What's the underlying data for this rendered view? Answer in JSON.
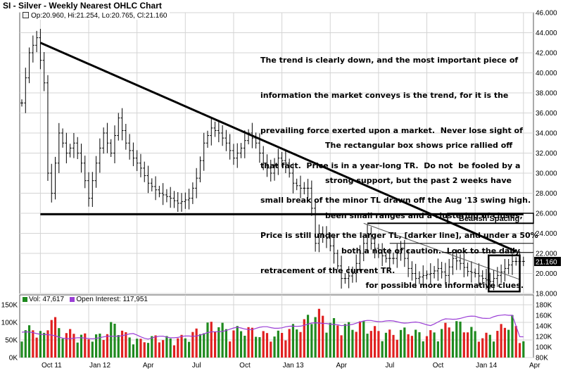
{
  "chart_data": [
    {
      "type": "ohlc",
      "title": "SI - Silver - Weekly Nearest OHLC Chart",
      "legend": {
        "open": "Op:20.960,",
        "high": "Hi:21.254,",
        "low": "Lo:20.765,",
        "close": "Cl:21.160"
      },
      "last_price_label": "21.160",
      "ylim": [
        18,
        46
      ],
      "y_ticks": [
        "18.000",
        "20.000",
        "22.000",
        "24.000",
        "26.000",
        "28.000",
        "30.000",
        "32.000",
        "34.000",
        "36.000",
        "38.000",
        "40.000",
        "42.000",
        "44.000",
        "46.000"
      ],
      "x_ticks": [
        "Oct 11",
        "Jan 12",
        "Apr",
        "Jul",
        "Oct",
        "Jan 13",
        "Apr",
        "Jul",
        "Oct",
        "Jan 14",
        "Apr"
      ],
      "grid": true,
      "anchors": [
        {
          "week": 0,
          "price": 37
        },
        {
          "week": 2,
          "price": 42
        },
        {
          "week": 4,
          "price": 43.5
        },
        {
          "week": 6,
          "price": 39
        },
        {
          "week": 7,
          "price": 30
        },
        {
          "week": 8,
          "price": 28
        },
        {
          "week": 10,
          "price": 34
        },
        {
          "week": 12,
          "price": 32
        },
        {
          "week": 14,
          "price": 33
        },
        {
          "week": 16,
          "price": 31
        },
        {
          "week": 18,
          "price": 27.5
        },
        {
          "week": 20,
          "price": 31
        },
        {
          "week": 22,
          "price": 34
        },
        {
          "week": 24,
          "price": 32
        },
        {
          "week": 26,
          "price": 35.5
        },
        {
          "week": 28,
          "price": 33
        },
        {
          "week": 30,
          "price": 31.5
        },
        {
          "week": 32,
          "price": 30.5
        },
        {
          "week": 34,
          "price": 29
        },
        {
          "week": 37,
          "price": 28
        },
        {
          "week": 40,
          "price": 27.5
        },
        {
          "week": 42,
          "price": 27
        },
        {
          "week": 45,
          "price": 27.5
        },
        {
          "week": 47,
          "price": 29.5
        },
        {
          "week": 49,
          "price": 33
        },
        {
          "week": 51,
          "price": 34.5
        },
        {
          "week": 53,
          "price": 34
        },
        {
          "week": 55,
          "price": 33
        },
        {
          "week": 57,
          "price": 31.5
        },
        {
          "week": 59,
          "price": 32.5
        },
        {
          "week": 61,
          "price": 34
        },
        {
          "week": 63,
          "price": 33
        },
        {
          "week": 65,
          "price": 31
        },
        {
          "week": 67,
          "price": 30
        },
        {
          "week": 69,
          "price": 31.5
        },
        {
          "week": 71,
          "price": 31
        },
        {
          "week": 73,
          "price": 29
        },
        {
          "week": 75,
          "price": 28.5
        },
        {
          "week": 77,
          "price": 28.5
        },
        {
          "week": 78,
          "price": 26.5
        },
        {
          "week": 79,
          "price": 23
        },
        {
          "week": 80,
          "price": 24
        },
        {
          "week": 82,
          "price": 23.5
        },
        {
          "week": 84,
          "price": 22
        },
        {
          "week": 86,
          "price": 19.5
        },
        {
          "week": 87,
          "price": 19.5
        },
        {
          "week": 89,
          "price": 20
        },
        {
          "week": 91,
          "price": 22
        },
        {
          "week": 93,
          "price": 24
        },
        {
          "week": 94,
          "price": 23
        },
        {
          "week": 96,
          "price": 22
        },
        {
          "week": 98,
          "price": 21.5
        },
        {
          "week": 100,
          "price": 21.5
        },
        {
          "week": 102,
          "price": 22.5
        },
        {
          "week": 104,
          "price": 20.5
        },
        {
          "week": 106,
          "price": 19.5
        },
        {
          "week": 108,
          "price": 19.8
        },
        {
          "week": 110,
          "price": 20
        },
        {
          "week": 112,
          "price": 20.5
        },
        {
          "week": 114,
          "price": 19.8
        },
        {
          "week": 116,
          "price": 21.5
        },
        {
          "week": 118,
          "price": 21
        },
        {
          "week": 120,
          "price": 20.2
        },
        {
          "week": 122,
          "price": 20
        },
        {
          "week": 124,
          "price": 19.5
        },
        {
          "week": 126,
          "price": 19.2
        },
        {
          "week": 128,
          "price": 19.8
        },
        {
          "week": 130,
          "price": 20.5
        },
        {
          "week": 132,
          "price": 21.2
        }
      ],
      "trendlines": [
        {
          "kind": "major_downtrend",
          "from": {
            "week": 5,
            "price": 43
          },
          "to": {
            "week": 133,
            "price": 22.2
          }
        },
        {
          "kind": "minor_downtrend",
          "from": {
            "week": 92,
            "price": 25
          },
          "to": {
            "week": 134,
            "price": 19.4
          }
        },
        {
          "kind": "support",
          "from": {
            "week": 5,
            "price": 25.9
          },
          "to": {
            "week": 135,
            "price": 25.9
          }
        }
      ],
      "levels": [
        {
          "kind": "range_top",
          "price": 25,
          "from_week": 93,
          "to_week": 135
        },
        {
          "kind": "retracement",
          "price": 23,
          "from_week": 99,
          "to_week": 135
        },
        {
          "kind": "retracement",
          "price": 22.1,
          "from_week": 113,
          "to_week": 135
        }
      ],
      "bearish_box": {
        "label": "Bearish Spacing",
        "price_low": 25,
        "price_high": 26
      },
      "highlight_box": {
        "from_week": 126,
        "to_week": 134,
        "price_low": 18.2,
        "price_high": 21.8
      },
      "annotation_1": [
        "The trend is clearly down, and the most important piece of",
        "information the market conveys is the trend, for it is the",
        "prevailing force exerted upon a market.  Never lose sight of",
        "that fact.  Price is in a year-long TR.  Do not  be fooled by a",
        "small break of the minor TL drawn off the Aug '13 swing high.",
        "Price is still under the larger TL, [darker line], and under a 50%",
        "retracement of the current TR."
      ],
      "annotation_2": [
        "The rectangular box shows price rallied off",
        "strong support, but the past 2 weeks have",
        "been small ranges and a clustering of closes,",
        "      both a note of caution.  Look to the daily",
        "               for possible more informative clues."
      ]
    },
    {
      "type": "bar",
      "legend_volume": "Vol: 47,617",
      "legend_open_interest": "Open Interest: 117,951",
      "volume_color_up": "#1f8a1f",
      "volume_color_down": "#e02020",
      "open_interest_color": "#9b3fd6",
      "ylim_volume": [
        0,
        150000
      ],
      "ylim_open_interest": [
        80000,
        180000
      ],
      "y_ticks_left": [
        "0K",
        "50K",
        "100K",
        "150K"
      ],
      "y_ticks_right": [
        "80K",
        "100K",
        "120K",
        "140K",
        "160K",
        "180K"
      ],
      "volume_anchors": [
        {
          "week": 0,
          "value": 70000
        },
        {
          "week": 3,
          "value": 80000
        },
        {
          "week": 6,
          "value": 60000
        },
        {
          "week": 8,
          "value": 120000
        },
        {
          "week": 10,
          "value": 75000
        },
        {
          "week": 14,
          "value": 65000
        },
        {
          "week": 18,
          "value": 55000
        },
        {
          "week": 22,
          "value": 60000
        },
        {
          "week": 24,
          "value": 85000
        },
        {
          "week": 26,
          "value": 90000
        },
        {
          "week": 28,
          "value": 60000
        },
        {
          "week": 32,
          "value": 45000
        },
        {
          "week": 36,
          "value": 55000
        },
        {
          "week": 40,
          "value": 50000
        },
        {
          "week": 44,
          "value": 55000
        },
        {
          "week": 48,
          "value": 75000
        },
        {
          "week": 52,
          "value": 95000
        },
        {
          "week": 56,
          "value": 70000
        },
        {
          "week": 60,
          "value": 80000
        },
        {
          "week": 64,
          "value": 65000
        },
        {
          "week": 68,
          "value": 60000
        },
        {
          "week": 72,
          "value": 75000
        },
        {
          "week": 76,
          "value": 95000
        },
        {
          "week": 79,
          "value": 125000
        },
        {
          "week": 82,
          "value": 100000
        },
        {
          "week": 85,
          "value": 90000
        },
        {
          "week": 88,
          "value": 85000
        },
        {
          "week": 92,
          "value": 90000
        },
        {
          "week": 96,
          "value": 70000
        },
        {
          "week": 100,
          "value": 65000
        },
        {
          "week": 104,
          "value": 75000
        },
        {
          "week": 108,
          "value": 60000
        },
        {
          "week": 112,
          "value": 70000
        },
        {
          "week": 116,
          "value": 95000
        },
        {
          "week": 120,
          "value": 80000
        },
        {
          "week": 124,
          "value": 55000
        },
        {
          "week": 128,
          "value": 70000
        },
        {
          "week": 130,
          "value": 90000
        },
        {
          "week": 132,
          "value": 105000
        },
        {
          "week": 134,
          "value": 50000
        }
      ],
      "open_interest_anchors": [
        {
          "week": 0,
          "value": 128000
        },
        {
          "week": 6,
          "value": 125000
        },
        {
          "week": 10,
          "value": 118000
        },
        {
          "week": 16,
          "value": 116000
        },
        {
          "week": 22,
          "value": 118000
        },
        {
          "week": 26,
          "value": 122000
        },
        {
          "week": 30,
          "value": 124000
        },
        {
          "week": 34,
          "value": 116000
        },
        {
          "week": 38,
          "value": 120000
        },
        {
          "week": 42,
          "value": 118000
        },
        {
          "week": 46,
          "value": 121000
        },
        {
          "week": 50,
          "value": 126000
        },
        {
          "week": 54,
          "value": 131000
        },
        {
          "week": 58,
          "value": 136000
        },
        {
          "week": 62,
          "value": 134000
        },
        {
          "week": 66,
          "value": 138000
        },
        {
          "week": 70,
          "value": 136000
        },
        {
          "week": 74,
          "value": 140000
        },
        {
          "week": 78,
          "value": 144000
        },
        {
          "week": 82,
          "value": 146000
        },
        {
          "week": 86,
          "value": 139000
        },
        {
          "week": 90,
          "value": 146000
        },
        {
          "week": 94,
          "value": 150000
        },
        {
          "week": 98,
          "value": 149000
        },
        {
          "week": 102,
          "value": 147000
        },
        {
          "week": 106,
          "value": 146000
        },
        {
          "week": 110,
          "value": 142000
        },
        {
          "week": 114,
          "value": 152000
        },
        {
          "week": 118,
          "value": 155000
        },
        {
          "week": 122,
          "value": 158000
        },
        {
          "week": 126,
          "value": 154000
        },
        {
          "week": 130,
          "value": 162000
        },
        {
          "week": 132,
          "value": 161000
        },
        {
          "week": 134,
          "value": 118000
        }
      ]
    }
  ],
  "colors": {
    "bar": "#000000",
    "grid": "#d4d4d4",
    "frame": "#555555",
    "vol_up": "#1f8a1f",
    "vol_down": "#e02020",
    "oi": "#9b3fd6"
  }
}
